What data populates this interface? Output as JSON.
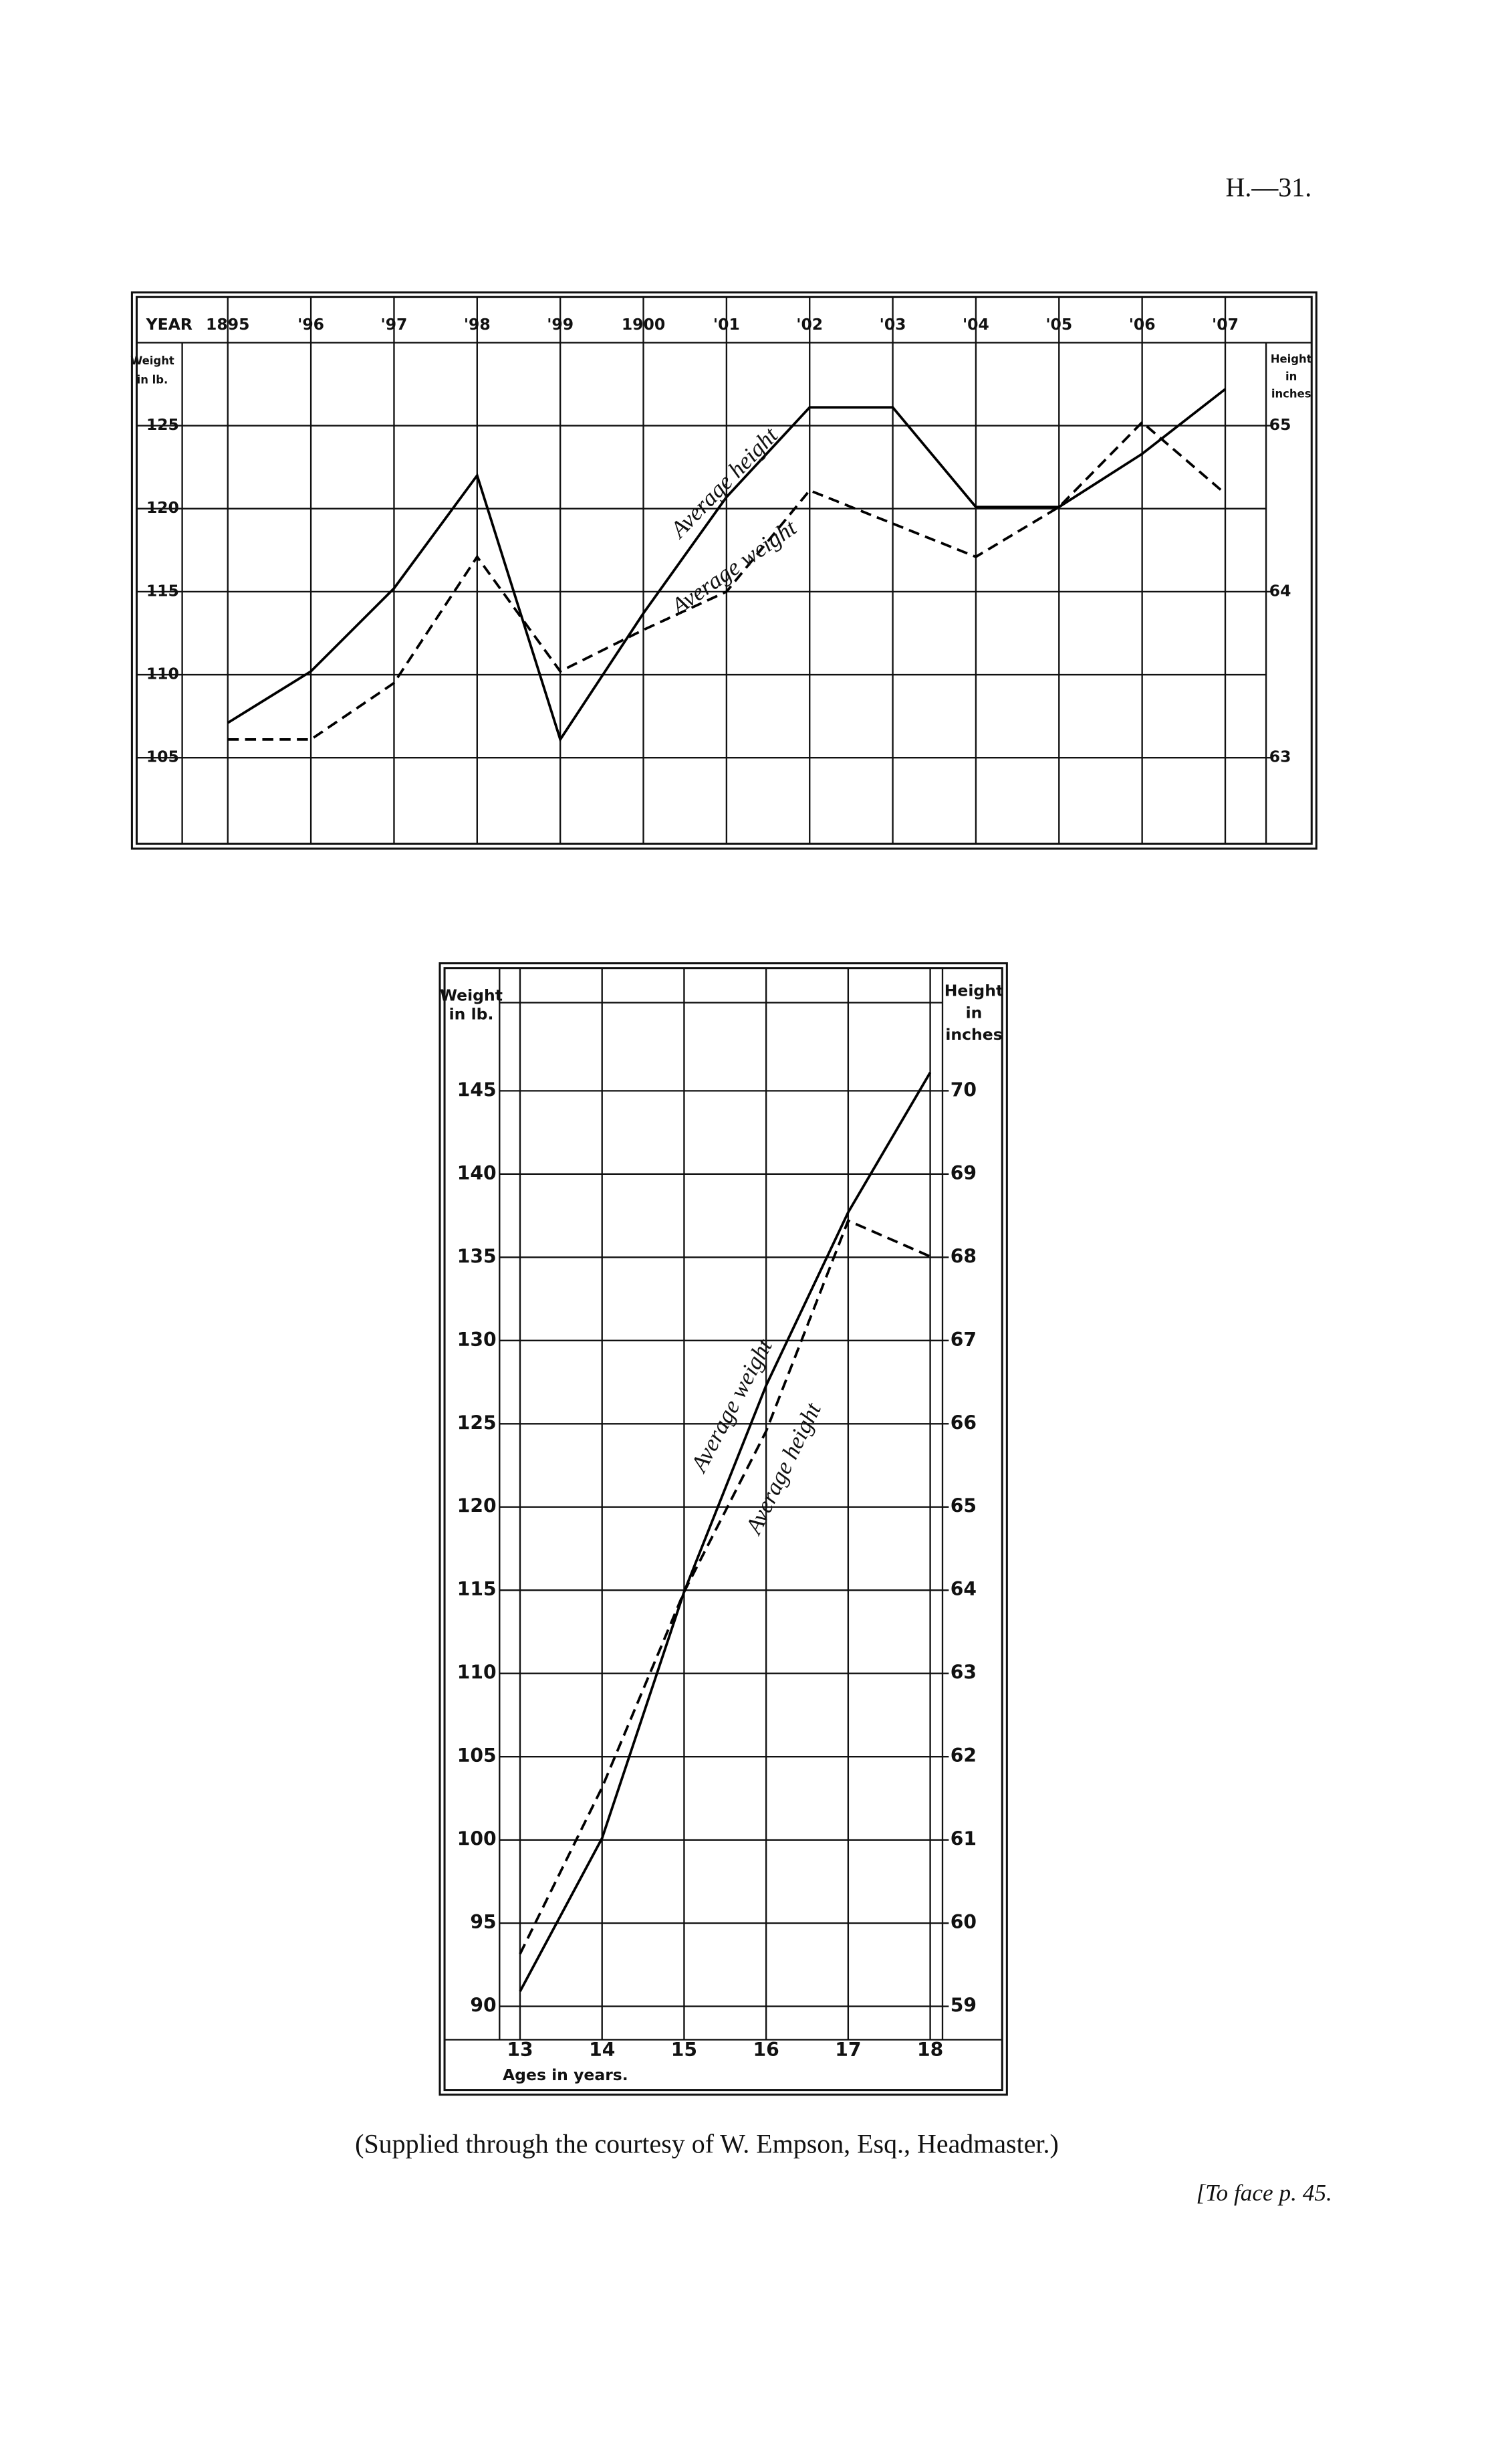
{
  "header": {
    "page_ref": "H.—31."
  },
  "chart_data": [
    {
      "type": "line",
      "xlabel": "YEAR",
      "categories": [
        "1895",
        "'96",
        "'97",
        "'98",
        "'99",
        "1900",
        "'01",
        "'02",
        "'03",
        "'04",
        "'05",
        "'06",
        "'07"
      ],
      "ylabel": [
        "Weight",
        "in lb."
      ],
      "y2label": [
        "Height",
        "in",
        "inches"
      ],
      "ylim": [
        100,
        130
      ],
      "yticks": [
        105,
        110,
        115,
        120,
        125
      ],
      "y2lim": [
        62.5,
        65.5
      ],
      "y2ticks": [
        63,
        64,
        65
      ],
      "series": [
        {
          "name": "Average height",
          "color": "#000",
          "line_style": "solid",
          "axis": "y2",
          "values": [
            63.21,
            63.52,
            64.02,
            64.7,
            63.11,
            63.87,
            64.57,
            65.11,
            65.11,
            64.51,
            64.51,
            64.83,
            65.22
          ]
        },
        {
          "name": "Average weight",
          "color": "#000",
          "line_style": "dashed",
          "values": [
            106.1,
            106.1,
            109.5,
            117.1,
            110.2,
            112.7,
            115,
            121.1,
            119.1,
            117.1,
            120.1,
            125.2,
            120.9
          ]
        }
      ]
    },
    {
      "type": "line",
      "xlabel": "Ages in years.",
      "x": [
        13,
        14,
        15,
        16,
        17,
        18
      ],
      "xlim": [
        12.75,
        18.15
      ],
      "xticks": [
        13,
        14,
        15,
        16,
        17,
        18
      ],
      "ylabel": [
        "Weight",
        "in lb."
      ],
      "y2label": [
        "Height",
        "in",
        "inches"
      ],
      "ylim": [
        88,
        152
      ],
      "yticks": [
        90,
        95,
        100,
        105,
        110,
        115,
        120,
        125,
        130,
        135,
        140,
        145
      ],
      "y2lim": [
        58.6,
        71.4
      ],
      "y2ticks": [
        59,
        60,
        61,
        62,
        63,
        64,
        65,
        66,
        67,
        68,
        69,
        70
      ],
      "series": [
        {
          "name": "Average weight",
          "color": "#000",
          "line_style": "solid",
          "values": [
            90.9,
            100.1,
            114.9,
            127.3,
            137.7,
            146.1
          ]
        },
        {
          "name": "Average height",
          "color": "#000",
          "line_style": "dashed",
          "axis": "y2",
          "values": [
            59.63,
            61.63,
            63.98,
            65.91,
            68.44,
            68.01
          ]
        }
      ]
    }
  ],
  "caption": "(Supplied through the courtesy of W. Empson, Esq., Headmaster.)",
  "footnote": "[To face p. 45."
}
